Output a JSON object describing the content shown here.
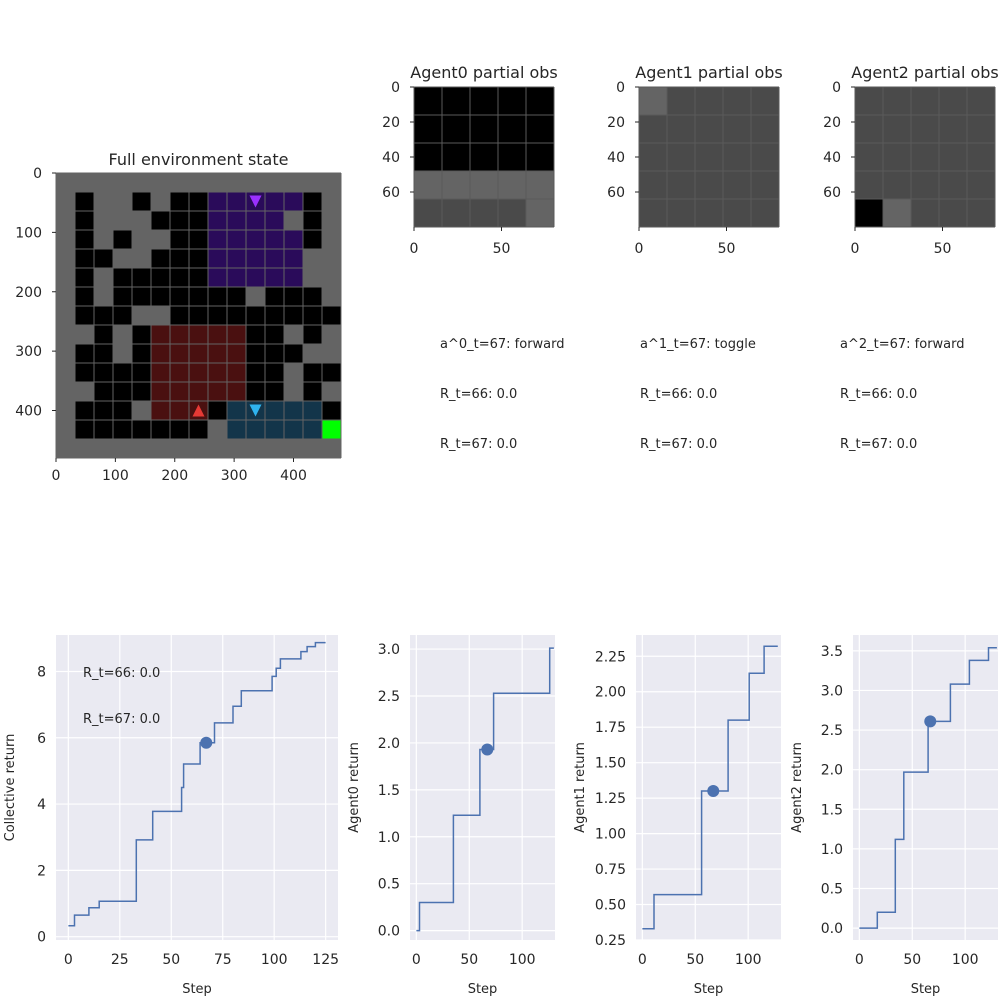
{
  "env": {
    "title": "Full environment state",
    "xticks": [
      0,
      100,
      200,
      300,
      400
    ],
    "yticks": [
      0,
      100,
      200,
      300,
      400
    ],
    "grid_cols": 15,
    "grid_rows": 15,
    "grid_rows_cells": [
      "WWWWWWWWWWWWWWW",
      "W.WW.W..PPPPP.W",
      "W.WWW...PPPPW.W",
      "W.W.WW..PPPPP.W",
      "W..WW...PPPPPWW",
      "W.W.....PPPPPWW",
      "W.W.......W...W",
      "W...WW.........",
      "WW.W.RRRRR..W.W",
      "W..W.RRRRR...WW",
      "W....RRRRR..W..",
      "WW...RRRRR..W.W",
      "W...WRRR.TTTTT.",
      "W.......WTTTTTG",
      "WWWWWWWWWWWWWWW"
    ],
    "agents": [
      {
        "name": "Agent0",
        "color": "#e53935",
        "row": 12,
        "col": 7,
        "dir": "up"
      },
      {
        "name": "Agent1",
        "color": "#2fb3ee",
        "row": 12,
        "col": 10,
        "dir": "down"
      },
      {
        "name": "Agent2",
        "color": "#9b30ff",
        "row": 1,
        "col": 10,
        "dir": "down"
      }
    ]
  },
  "obs": [
    {
      "title": "Agent0 partial obs",
      "xticks": [
        0,
        50
      ],
      "yticks": [
        0,
        20,
        40,
        60
      ],
      "cells": [
        [
          "#000",
          "#000",
          "#000",
          "#000",
          "#000"
        ],
        [
          "#000",
          "#000",
          "#000",
          "#000",
          "#000"
        ],
        [
          "#000",
          "#000",
          "#000",
          "#000",
          "#000"
        ],
        [
          "#646464",
          "#646464",
          "#646464",
          "#646464",
          "#646464"
        ],
        [
          "#4a4a4a",
          "#4a4a4a",
          "#4a4a4a",
          "#4a4a4a",
          "#646464"
        ]
      ]
    },
    {
      "title": "Agent1 partial obs",
      "xticks": [
        0,
        50
      ],
      "yticks": [
        0,
        20,
        40,
        60
      ],
      "cells": [
        [
          "#646464",
          "#4a4a4a",
          "#4a4a4a",
          "#4a4a4a",
          "#4a4a4a"
        ],
        [
          "#4a4a4a",
          "#4a4a4a",
          "#4a4a4a",
          "#4a4a4a",
          "#4a4a4a"
        ],
        [
          "#4a4a4a",
          "#4a4a4a",
          "#4a4a4a",
          "#4a4a4a",
          "#4a4a4a"
        ],
        [
          "#4a4a4a",
          "#4a4a4a",
          "#4a4a4a",
          "#4a4a4a",
          "#4a4a4a"
        ],
        [
          "#4a4a4a",
          "#4a4a4a",
          "#4a4a4a",
          "#4a4a4a",
          "#4a4a4a"
        ]
      ]
    },
    {
      "title": "Agent2 partial obs",
      "xticks": [
        0,
        50
      ],
      "yticks": [
        0,
        20,
        40,
        60
      ],
      "cells": [
        [
          "#4a4a4a",
          "#4a4a4a",
          "#4a4a4a",
          "#4a4a4a",
          "#4a4a4a"
        ],
        [
          "#4a4a4a",
          "#4a4a4a",
          "#4a4a4a",
          "#4a4a4a",
          "#4a4a4a"
        ],
        [
          "#4a4a4a",
          "#4a4a4a",
          "#4a4a4a",
          "#4a4a4a",
          "#4a4a4a"
        ],
        [
          "#4a4a4a",
          "#4a4a4a",
          "#4a4a4a",
          "#4a4a4a",
          "#4a4a4a"
        ],
        [
          "#000",
          "#646464",
          "#4a4a4a",
          "#4a4a4a",
          "#4a4a4a"
        ]
      ]
    }
  ],
  "info": [
    {
      "action": "a^0_t=67: forward",
      "r66": "R_t=66: 0.0",
      "r67": "R_t=67: 0.0"
    },
    {
      "action": "a^1_t=67: toggle",
      "r66": "R_t=66: 0.0",
      "r67": "R_t=67: 0.0"
    },
    {
      "action": "a^2_t=67: forward",
      "r66": "R_t=66: 0.0",
      "r67": "R_t=67: 0.0"
    }
  ],
  "chart_data": [
    {
      "type": "line",
      "ylabel": "Collective return",
      "xlabel": "Step",
      "xlim": [
        -6,
        131
      ],
      "ylim": [
        -0.1,
        9.1
      ],
      "xticks": [
        0,
        25,
        50,
        75,
        100,
        125
      ],
      "yticks": [
        0,
        2,
        4,
        6,
        8
      ],
      "annotations": [
        "R_t=66: 0.0",
        "R_t=67: 0.0"
      ],
      "x": [
        0,
        3,
        3,
        10,
        10,
        15,
        15,
        33,
        33,
        41,
        41,
        55,
        55,
        56,
        56,
        58,
        58,
        64,
        64,
        67,
        67,
        71,
        71,
        80,
        80,
        84,
        84,
        99,
        99,
        101,
        101,
        103,
        103,
        113,
        113,
        116,
        116,
        120,
        120,
        122,
        122,
        125
      ],
      "y": [
        0.33,
        0.33,
        0.65,
        0.65,
        0.87,
        0.87,
        1.07,
        1.07,
        2.92,
        2.92,
        3.78,
        3.78,
        4.5,
        4.5,
        5.21,
        5.21,
        5.21,
        5.21,
        5.85,
        5.85,
        5.85,
        5.85,
        6.45,
        6.45,
        6.95,
        6.95,
        7.42,
        7.42,
        7.85,
        7.85,
        8.1,
        8.1,
        8.38,
        8.38,
        8.6,
        8.6,
        8.75,
        8.75,
        8.87,
        8.87,
        8.87,
        8.87
      ],
      "marker": {
        "x": 67,
        "y": 5.85
      }
    },
    {
      "type": "line",
      "ylabel": "Agent0 return",
      "xlabel": "Step",
      "xlim": [
        -6,
        131
      ],
      "ylim": [
        -0.1,
        3.15
      ],
      "xticks": [
        0,
        50,
        100
      ],
      "yticks": [
        0.0,
        0.5,
        1.0,
        1.5,
        2.0,
        2.5,
        3.0
      ],
      "x": [
        0,
        3,
        3,
        35,
        35,
        60,
        60,
        73,
        73,
        126,
        126,
        130
      ],
      "y": [
        0.0,
        0.0,
        0.3,
        0.3,
        1.23,
        1.23,
        1.93,
        1.93,
        2.53,
        2.53,
        3.01,
        3.01
      ],
      "marker": {
        "x": 67,
        "y": 1.93
      }
    },
    {
      "type": "line",
      "ylabel": "Agent1 return",
      "xlabel": "Step",
      "xlim": [
        -6,
        131
      ],
      "ylim": [
        0.25,
        2.4
      ],
      "xticks": [
        0,
        50,
        100
      ],
      "yticks": [
        0.25,
        0.5,
        0.75,
        1.0,
        1.25,
        1.5,
        1.75,
        2.0,
        2.25
      ],
      "x": [
        0,
        11,
        11,
        56,
        56,
        81,
        81,
        101,
        101,
        115,
        115,
        128
      ],
      "y": [
        0.33,
        0.33,
        0.57,
        0.57,
        1.3,
        1.3,
        1.8,
        1.8,
        2.13,
        2.13,
        2.32,
        2.32
      ],
      "marker": {
        "x": 67,
        "y": 1.3
      }
    },
    {
      "type": "line",
      "ylabel": "Agent2 return",
      "xlabel": "Step",
      "xlim": [
        -6,
        131
      ],
      "ylim": [
        -0.15,
        3.7
      ],
      "xticks": [
        0,
        50,
        100
      ],
      "yticks": [
        0.0,
        0.5,
        1.0,
        1.5,
        2.0,
        2.5,
        3.0,
        3.5
      ],
      "x": [
        0,
        17,
        17,
        34,
        34,
        42,
        42,
        65,
        65,
        86,
        86,
        104,
        104,
        122,
        122,
        130
      ],
      "y": [
        0.0,
        0.0,
        0.2,
        0.2,
        1.12,
        1.12,
        1.97,
        1.97,
        2.61,
        2.61,
        3.08,
        3.08,
        3.38,
        3.38,
        3.54,
        3.54
      ],
      "marker": {
        "x": 67,
        "y": 2.61
      }
    }
  ],
  "colors": {
    "axes_bg": "#eaeaf2",
    "line": "#4c72b0",
    "text": "#262626",
    "wall": "#646464",
    "floor": "#000000",
    "purple_room": "#2a0b5a",
    "red_room": "#4a1010",
    "teal_room": "#13354a",
    "goal": "#00ff00",
    "grid_line": "#3a3a3a"
  }
}
